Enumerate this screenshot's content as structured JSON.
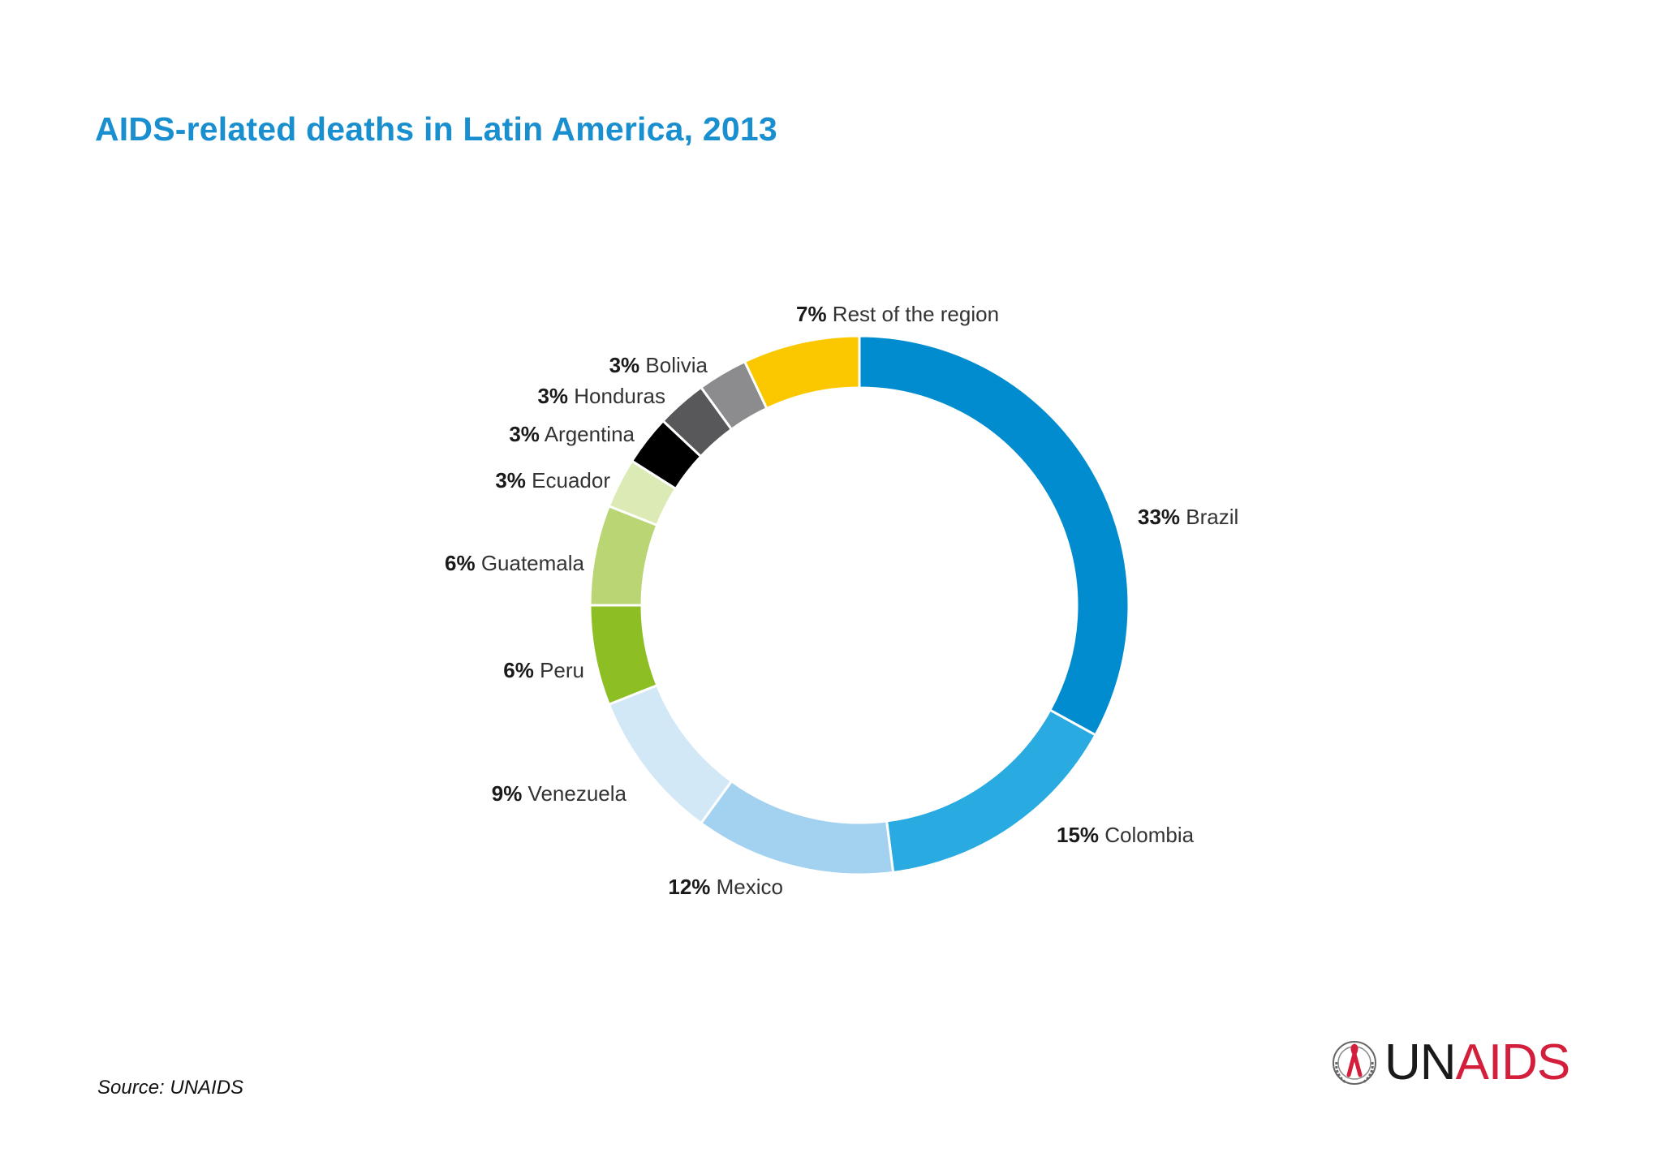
{
  "chart_data": {
    "type": "pie",
    "donut": true,
    "title": "AIDS-related deaths in Latin America, 2013",
    "slices": [
      {
        "label": "Brazil",
        "value": 33,
        "value_label": "33%",
        "color": "#008ccf"
      },
      {
        "label": "Colombia",
        "value": 15,
        "value_label": "15%",
        "color": "#29abe2"
      },
      {
        "label": "Mexico",
        "value": 12,
        "value_label": "12%",
        "color": "#a3d2f0"
      },
      {
        "label": "Venezuela",
        "value": 9,
        "value_label": "9%",
        "color": "#d3e8f6"
      },
      {
        "label": "Peru",
        "value": 6,
        "value_label": "6%",
        "color": "#8dbf24"
      },
      {
        "label": "Guatemala",
        "value": 6,
        "value_label": "6%",
        "color": "#b9d574"
      },
      {
        "label": "Ecuador",
        "value": 3,
        "value_label": "3%",
        "color": "#dcebb6"
      },
      {
        "label": "Argentina",
        "value": 3,
        "value_label": "3%",
        "color": "#000000"
      },
      {
        "label": "Honduras",
        "value": 3,
        "value_label": "3%",
        "color": "#58585a"
      },
      {
        "label": "Bolivia",
        "value": 3,
        "value_label": "3%",
        "color": "#8c8c8e"
      },
      {
        "label": "Rest of the region",
        "value": 7,
        "value_label": "7%",
        "color": "#fbc800"
      }
    ]
  },
  "source": "Source: UNAIDS",
  "logo": {
    "part1": "UN",
    "part2": "AIDS",
    "color_un": "#1a1a1a",
    "color_aids": "#d31f3b"
  }
}
